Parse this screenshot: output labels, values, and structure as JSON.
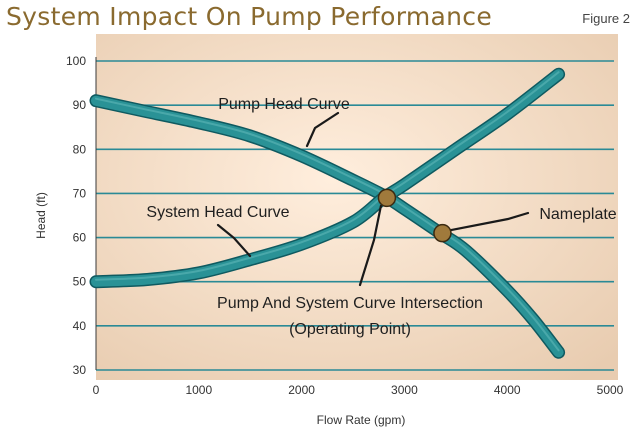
{
  "header": {
    "title": "System Impact On Pump Performance",
    "figure_label": "Figure 2"
  },
  "colors": {
    "title": "#8a6a2f",
    "panel_edge": "#e8ccb0",
    "panel_center": "#ffeedd",
    "grid": "#2a8a96",
    "curve_fill": "#2a9296",
    "curve_edge": "#0f5a60",
    "marker": "#a07a3c",
    "leader": "#1a1a1a"
  },
  "chart_data": {
    "type": "line",
    "title": "System Impact On Pump Performance",
    "xlabel": "Flow Rate (gpm)",
    "ylabel": "Head (ft)",
    "xlim": [
      0,
      5000
    ],
    "ylim": [
      30,
      100
    ],
    "x_ticks": [
      "0",
      "1000",
      "2000",
      "3000",
      "4000",
      "5000"
    ],
    "y_ticks": [
      "30",
      "40",
      "50",
      "60",
      "70",
      "80",
      "90",
      "100"
    ],
    "grid": "horizontal",
    "series": [
      {
        "name": "Pump Head Curve",
        "x": [
          0,
          500,
          1000,
          1500,
          2000,
          2500,
          2800,
          3000,
          3350,
          3600,
          4000,
          4250,
          4500
        ],
        "y": [
          91,
          88.5,
          86,
          83,
          78.5,
          73,
          69.5,
          66.5,
          61,
          57,
          48,
          41.5,
          34
        ]
      },
      {
        "name": "System Head Curve",
        "x": [
          0,
          500,
          1000,
          1500,
          2000,
          2500,
          2800,
          3000,
          3500,
          4000,
          4500
        ],
        "y": [
          50,
          50.5,
          52,
          55,
          58.5,
          63.5,
          69,
          72,
          80,
          88,
          97
        ]
      }
    ],
    "points": [
      {
        "name": "Pump And System Curve Intersection (Operating Point)",
        "x": 2830,
        "y": 69
      },
      {
        "name": "Nameplate",
        "x": 3370,
        "y": 61
      }
    ],
    "annotations": [
      {
        "label": "Pump Head Curve"
      },
      {
        "label": "System Head Curve"
      },
      {
        "label": "Nameplate"
      },
      {
        "label": "Pump And System Curve Intersection"
      },
      {
        "label": "(Operating Point)"
      }
    ]
  }
}
